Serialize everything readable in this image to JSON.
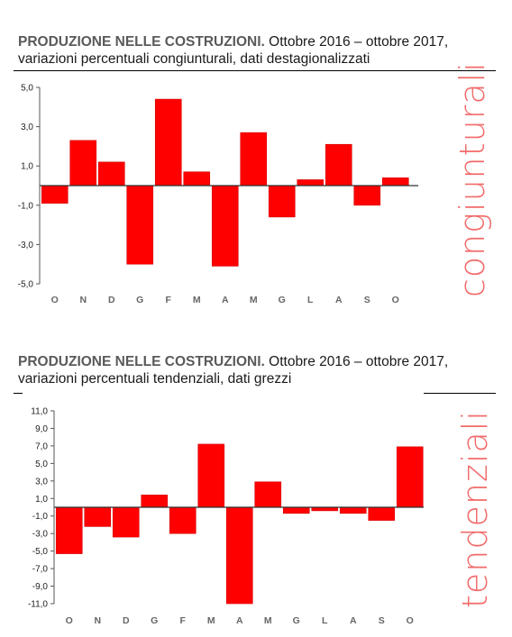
{
  "panels": [
    {
      "title_bold": "PRODUZIONE NELLE COSTRUZIONI.",
      "title_rest": " Ottobre 2016 – ottobre 2017, variazioni percentuali congiunturali, dati destagionalizzati",
      "side_label": "congiunturali"
    },
    {
      "title_bold": "PRODUZIONE NELLE COSTRUZIONI.",
      "title_rest": " Ottobre 2016 – ottobre 2017, variazioni percentuali tendenziali, dati grezzi",
      "side_label": "tendenziali"
    }
  ],
  "chart_data": [
    {
      "type": "bar",
      "categories": [
        "O",
        "N",
        "D",
        "G",
        "F",
        "M",
        "A",
        "M",
        "G",
        "L",
        "A",
        "S",
        "O"
      ],
      "values": [
        -0.9,
        2.3,
        1.2,
        -4.0,
        4.4,
        0.7,
        -4.1,
        2.7,
        -1.6,
        0.3,
        2.1,
        -1.0,
        0.4
      ],
      "ylim": [
        -5.0,
        5.0
      ],
      "yticks": [
        "5,0",
        "3,0",
        "1,0",
        "-1,0",
        "-3,0",
        "-5,0"
      ],
      "color": "#ff0000"
    },
    {
      "type": "bar",
      "categories": [
        "O",
        "N",
        "D",
        "G",
        "F",
        "M",
        "A",
        "M",
        "G",
        "L",
        "A",
        "S",
        "O"
      ],
      "values": [
        -5.3,
        -2.2,
        -3.4,
        1.4,
        -3.0,
        7.2,
        -11.0,
        2.9,
        -0.7,
        -0.4,
        -0.7,
        -1.5,
        6.9
      ],
      "ylim": [
        -11.0,
        11.0
      ],
      "yticks": [
        "11,0",
        "9,0",
        "7,0",
        "5,0",
        "3,0",
        "1,0",
        "-1,0",
        "-3,0",
        "-5,0",
        "-7,0",
        "-9,0",
        "-11,0"
      ],
      "color": "#ff0000"
    }
  ]
}
